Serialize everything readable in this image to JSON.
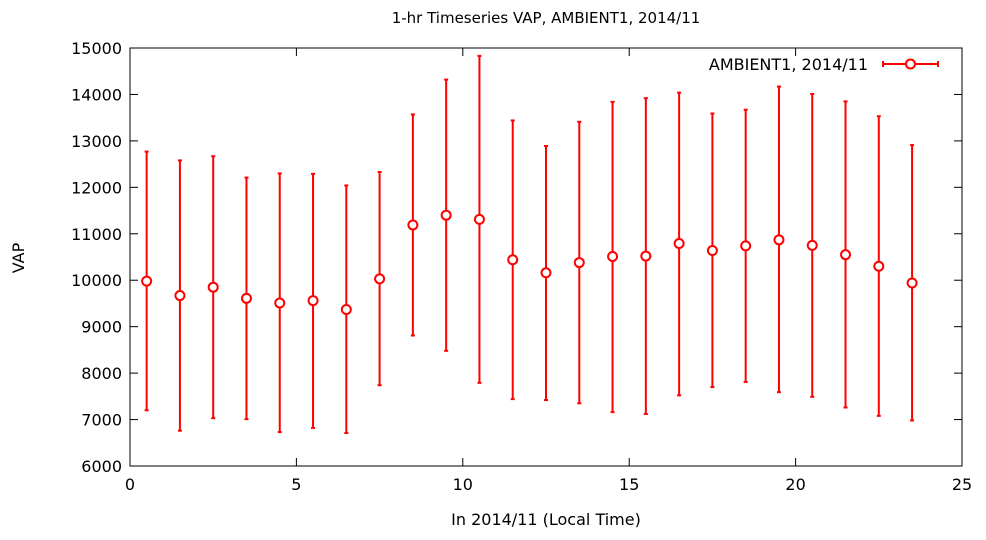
{
  "chart_data": {
    "type": "scatter",
    "title": "1-hr Timeseries VAP, AMBIENT1, 2014/11",
    "xlabel": "In 2014/11 (Local Time)",
    "ylabel": "VAP",
    "xlim": [
      0,
      25
    ],
    "ylim": [
      6000,
      15000
    ],
    "xticks": [
      "0",
      "5",
      "10",
      "15",
      "20",
      "25"
    ],
    "yticks": [
      "6000",
      "7000",
      "8000",
      "9000",
      "10000",
      "11000",
      "12000",
      "13000",
      "14000",
      "15000"
    ],
    "grid": false,
    "legend_position": "top-right",
    "series_color": "#ff0000",
    "series": [
      {
        "name": "AMBIENT1, 2014/11",
        "x": [
          0.5,
          1.5,
          2.5,
          3.5,
          4.5,
          5.5,
          6.5,
          7.5,
          8.5,
          9.5,
          10.5,
          11.5,
          12.5,
          13.5,
          14.5,
          15.5,
          16.5,
          17.5,
          18.5,
          19.5,
          20.5,
          21.5,
          22.5,
          23.5
        ],
        "y": [
          9980,
          9670,
          9850,
          9610,
          9510,
          9560,
          9370,
          10030,
          11190,
          11400,
          11310,
          10440,
          10160,
          10380,
          10510,
          10520,
          10790,
          10640,
          10740,
          10870,
          10750,
          10550,
          10300,
          9940
        ],
        "y_low": [
          7200,
          6760,
          7030,
          7010,
          6730,
          6820,
          6710,
          7740,
          8810,
          8480,
          7790,
          7440,
          7420,
          7350,
          7160,
          7120,
          7520,
          7700,
          7810,
          7590,
          7490,
          7260,
          7080,
          6980
        ],
        "y_high": [
          12770,
          12580,
          12670,
          12210,
          12300,
          12290,
          12040,
          12330,
          13570,
          14320,
          14830,
          13440,
          12890,
          13410,
          13840,
          13920,
          14040,
          13590,
          13670,
          14170,
          14010,
          13850,
          13530,
          12910
        ]
      }
    ]
  }
}
